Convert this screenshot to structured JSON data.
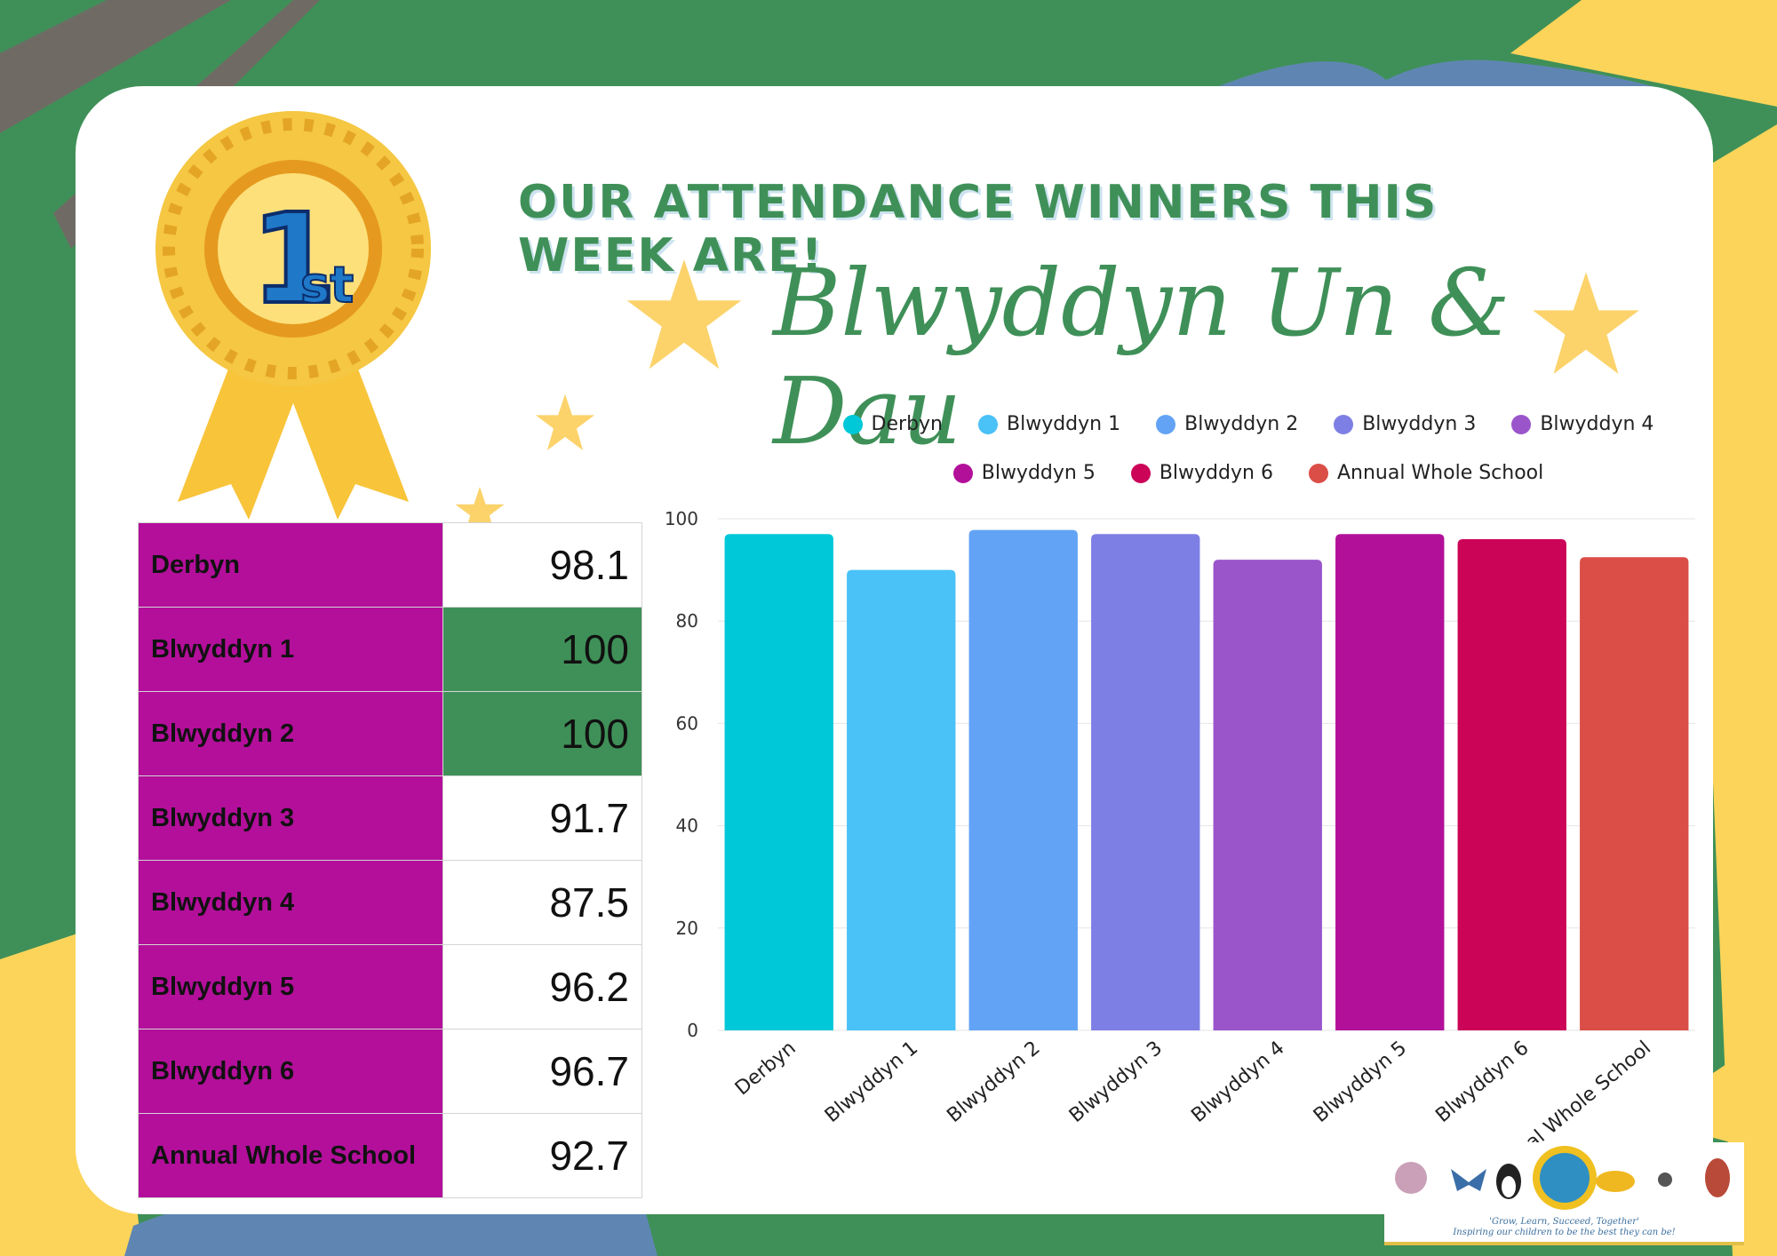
{
  "heading": "OUR ATTENDANCE WINNERS THIS WEEK ARE!",
  "winner": "Blwyddyn Un & Dau",
  "award": {
    "number": "1",
    "suffix": "st"
  },
  "colors": {
    "background_green": "#3f9058",
    "yellow": "#fcd45a",
    "blue_stroke": "#5f86b2",
    "table_name_bg": "#b30f9b",
    "highlight_green": "#3f9058"
  },
  "table": [
    {
      "name": "Derbyn",
      "value": "98.1",
      "highlight": false
    },
    {
      "name": "Blwyddyn 1",
      "value": "100",
      "highlight": true
    },
    {
      "name": "Blwyddyn 2",
      "value": "100",
      "highlight": true
    },
    {
      "name": "Blwyddyn 3",
      "value": "91.7",
      "highlight": false
    },
    {
      "name": "Blwyddyn 4",
      "value": "87.5",
      "highlight": false
    },
    {
      "name": "Blwyddyn 5",
      "value": "96.2",
      "highlight": false
    },
    {
      "name": "Blwyddyn 6",
      "value": "96.7",
      "highlight": false
    },
    {
      "name": "Annual Whole School",
      "value": "92.7",
      "highlight": false
    }
  ],
  "chart_data": {
    "type": "bar",
    "categories": [
      "Derbyn",
      "Blwyddyn 1",
      "Blwyddyn 2",
      "Blwyddyn 3",
      "Blwyddyn 4",
      "Blwyddyn 5",
      "Blwyddyn 6",
      "Annual Whole School"
    ],
    "values": [
      97,
      90,
      97.8,
      97,
      92,
      97,
      96,
      92.5
    ],
    "colors": [
      "#00c8d8",
      "#4ac1f7",
      "#62a3f5",
      "#7e7fe4",
      "#9a55cb",
      "#b3109a",
      "#cc0458",
      "#db4d47"
    ],
    "legend": [
      "Derbyn",
      "Blwyddyn 1",
      "Blwyddyn 2",
      "Blwyddyn 3",
      "Blwyddyn 4",
      "Blwyddyn 5",
      "Blwyddyn 6",
      "Annual Whole School"
    ],
    "legend_placement": "top",
    "yticks": [
      0,
      20,
      40,
      60,
      80,
      100
    ],
    "ylim": [
      0,
      100
    ],
    "grid": true,
    "title": "",
    "xlabel": "",
    "ylabel": ""
  },
  "logo": {
    "motto": "'Grow, Learn, Succeed, Together'",
    "tagline": "Inspiring our children to be the best they can be!"
  }
}
